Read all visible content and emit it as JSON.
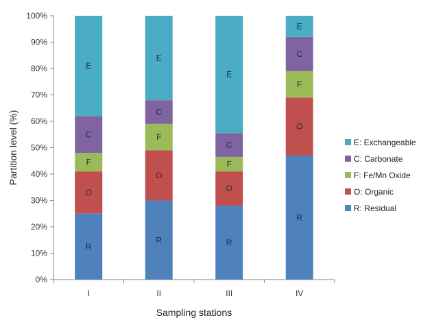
{
  "chart_data": {
    "type": "bar",
    "stacked": true,
    "categories": [
      "I",
      "II",
      "III",
      "IV"
    ],
    "xlabel": "Sampling stations",
    "ylabel": "Partition level (%)",
    "ylim": [
      0,
      100
    ],
    "yticks": [
      0,
      10,
      20,
      30,
      40,
      50,
      60,
      70,
      80,
      90,
      100
    ],
    "ytick_suffix": "%",
    "grid": false,
    "legend_position": "right",
    "series": [
      {
        "name": "R: Residual",
        "short": "R",
        "color": "#4f81bd",
        "values": [
          25,
          30,
          28,
          47
        ]
      },
      {
        "name": "O: Organic",
        "short": "O",
        "color": "#c0504d",
        "values": [
          16,
          19,
          13,
          22
        ]
      },
      {
        "name": "F: Fe/Mn Oxide",
        "short": "F",
        "color": "#9bbb59",
        "values": [
          7,
          10,
          5.5,
          10
        ]
      },
      {
        "name": "C: Carbonate",
        "short": "C",
        "color": "#8064a2",
        "values": [
          14,
          9,
          9,
          13
        ]
      },
      {
        "name": "E: Exchangeable",
        "short": "E",
        "color": "#4bacc6",
        "values": [
          38,
          32,
          44.5,
          8
        ]
      }
    ]
  }
}
